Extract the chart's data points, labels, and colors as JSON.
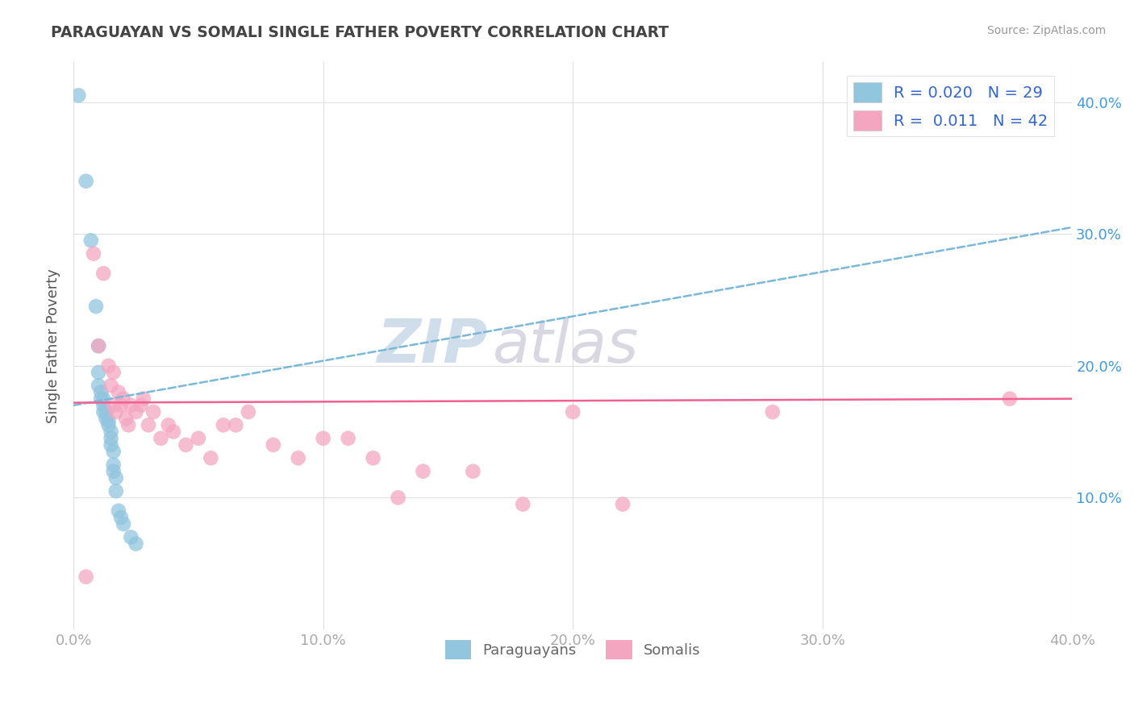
{
  "title": "PARAGUAYAN VS SOMALI SINGLE FATHER POVERTY CORRELATION CHART",
  "source": "Source: ZipAtlas.com",
  "ylabel": "Single Father Poverty",
  "xlim": [
    0.0,
    0.4
  ],
  "ylim": [
    0.0,
    0.43
  ],
  "xticks": [
    0.0,
    0.1,
    0.2,
    0.3,
    0.4
  ],
  "xtick_labels": [
    "0.0%",
    "10.0%",
    "20.0%",
    "30.0%",
    "40.0%"
  ],
  "yticks": [
    0.1,
    0.2,
    0.3,
    0.4
  ],
  "ytick_labels": [
    "10.0%",
    "20.0%",
    "30.0%",
    "40.0%"
  ],
  "watermark_zip": "ZIP",
  "watermark_atlas": "atlas",
  "legend_r_paraguayan": "0.020",
  "legend_n_paraguayan": "29",
  "legend_r_somali": "0.011",
  "legend_n_somali": "42",
  "paraguayan_color": "#92c5de",
  "somali_color": "#f4a6c0",
  "paraguayan_line_color": "#7ab8d9",
  "somali_line_color": "#f06090",
  "paraguayan_x": [
    0.002,
    0.005,
    0.007,
    0.009,
    0.01,
    0.01,
    0.01,
    0.011,
    0.011,
    0.012,
    0.012,
    0.012,
    0.013,
    0.013,
    0.014,
    0.014,
    0.015,
    0.015,
    0.015,
    0.016,
    0.016,
    0.016,
    0.017,
    0.017,
    0.018,
    0.019,
    0.02,
    0.023,
    0.025
  ],
  "paraguayan_y": [
    0.405,
    0.34,
    0.295,
    0.245,
    0.215,
    0.195,
    0.185,
    0.18,
    0.175,
    0.175,
    0.17,
    0.165,
    0.165,
    0.16,
    0.158,
    0.155,
    0.15,
    0.145,
    0.14,
    0.135,
    0.125,
    0.12,
    0.115,
    0.105,
    0.09,
    0.085,
    0.08,
    0.07,
    0.065
  ],
  "somali_x": [
    0.005,
    0.008,
    0.01,
    0.012,
    0.014,
    0.015,
    0.016,
    0.016,
    0.017,
    0.018,
    0.019,
    0.02,
    0.021,
    0.022,
    0.023,
    0.025,
    0.027,
    0.028,
    0.03,
    0.032,
    0.035,
    0.038,
    0.04,
    0.045,
    0.05,
    0.055,
    0.06,
    0.065,
    0.07,
    0.08,
    0.09,
    0.1,
    0.11,
    0.12,
    0.13,
    0.14,
    0.16,
    0.18,
    0.2,
    0.22,
    0.28,
    0.375
  ],
  "somali_y": [
    0.04,
    0.285,
    0.215,
    0.27,
    0.2,
    0.185,
    0.195,
    0.17,
    0.165,
    0.18,
    0.17,
    0.175,
    0.16,
    0.155,
    0.17,
    0.165,
    0.17,
    0.175,
    0.155,
    0.165,
    0.145,
    0.155,
    0.15,
    0.14,
    0.145,
    0.13,
    0.155,
    0.155,
    0.165,
    0.14,
    0.13,
    0.145,
    0.145,
    0.13,
    0.1,
    0.12,
    0.12,
    0.095,
    0.165,
    0.095,
    0.165,
    0.175
  ],
  "paraguayan_trend_x0": 0.0,
  "paraguayan_trend_y0": 0.17,
  "paraguayan_trend_x1": 0.4,
  "paraguayan_trend_y1": 0.305,
  "somali_trend_x0": 0.0,
  "somali_trend_y0": 0.172,
  "somali_trend_x1": 0.4,
  "somali_trend_y1": 0.175,
  "background_color": "#ffffff",
  "grid_color": "#e0e0e0",
  "title_color": "#444444",
  "axis_label_color": "#555555",
  "tick_label_color": "#aaaaaa",
  "right_ytick_color": "#4499dd",
  "legend_text_color": "#3366cc"
}
